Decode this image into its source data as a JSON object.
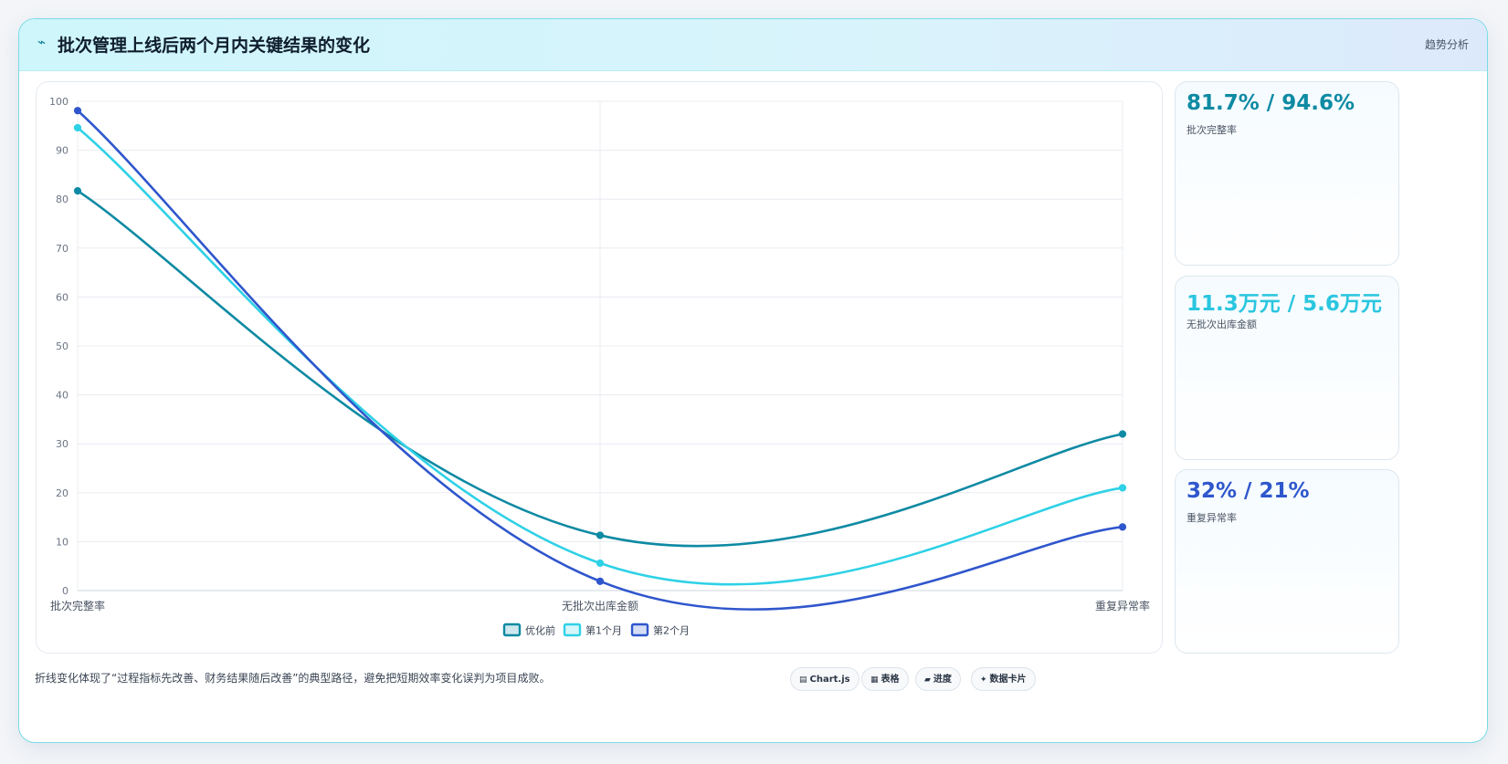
{
  "header": {
    "title": "批次管理上线后两个月内关键结果的变化",
    "tag": "趋势分析"
  },
  "stats": [
    {
      "value": "81.7% / 94.6%",
      "label": "批次完整率",
      "color": "#0e8aa3"
    },
    {
      "value": "11.3万元 / 5.6万元",
      "label": "无批次出库金额",
      "color": "#2ac6df"
    },
    {
      "value": "32% / 21%",
      "label": "重复异常率",
      "color": "#2f56cc"
    }
  ],
  "footer": {
    "note": "折线变化体现了“过程指标先改善、财务结果随后改善”的典型路径，避免把短期效率变化误判为项目成败。",
    "chips": [
      {
        "icon": "table-icon",
        "glyph": "▤",
        "label": "Chart.js"
      },
      {
        "icon": "grid-icon",
        "glyph": "▦",
        "label": "表格"
      },
      {
        "icon": "progress-icon",
        "glyph": "▰",
        "label": "进度"
      },
      {
        "icon": "sparkle-icon",
        "glyph": "✦",
        "label": "数据卡片"
      }
    ]
  },
  "chart_data": {
    "type": "line",
    "categories": [
      "批次完整率",
      "无批次出库金额",
      "重复异常率"
    ],
    "series": [
      {
        "name": "优化前",
        "values": [
          81.7,
          11.3,
          32
        ],
        "color": "#0e8aa3"
      },
      {
        "name": "第1个月",
        "values": [
          94.6,
          5.6,
          21
        ],
        "color": "#2ed1e6"
      },
      {
        "name": "第2个月",
        "values": [
          98.1,
          1.9,
          13
        ],
        "color": "#2f56cc"
      }
    ],
    "ylim": [
      0,
      100
    ],
    "yticks": [
      0,
      10,
      20,
      30,
      40,
      50,
      60,
      70,
      80,
      90,
      100
    ],
    "grid": true,
    "legend": "bottom"
  }
}
